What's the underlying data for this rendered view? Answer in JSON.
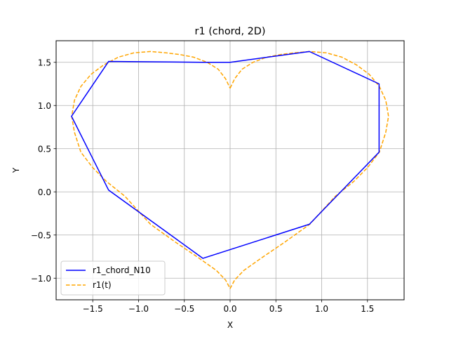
{
  "chart_data": {
    "type": "line",
    "title": "r1 (chord, 2D)",
    "xlabel": "X",
    "ylabel": "Y",
    "xlim": [
      -1.9,
      1.9
    ],
    "ylim": [
      -1.25,
      1.75
    ],
    "xticks": [
      -1.5,
      -1.0,
      -0.5,
      0.0,
      0.5,
      1.0,
      1.5
    ],
    "xtick_labels": [
      "−1.5",
      "−1.0",
      "−0.5",
      "0.0",
      "0.5",
      "1.0",
      "1.5"
    ],
    "yticks": [
      -1.0,
      -0.5,
      0.0,
      0.5,
      1.0,
      1.5
    ],
    "ytick_labels": [
      "−1.0",
      "−0.5",
      "0.0",
      "0.5",
      "1.0",
      "1.5"
    ],
    "grid": true,
    "legend_position": "lower-left",
    "series": [
      {
        "name": "r1_chord_N10",
        "color": "#0000ff",
        "style": "solid",
        "x": [
          0.0,
          0.866,
          1.627,
          1.627,
          0.866,
          -0.297,
          -1.327,
          -1.732,
          -1.327,
          -0.297,
          0.0
        ],
        "y": [
          1.5,
          1.625,
          1.25,
          0.46,
          -0.375,
          -0.77,
          0.02,
          0.875,
          1.51,
          1.5,
          1.5
        ]
      },
      {
        "name": "r1(t)",
        "color": "#ffa500",
        "style": "dashed",
        "x": [
          0.0,
          0.05,
          0.13,
          0.25,
          0.4,
          0.55,
          0.7,
          0.87,
          1.05,
          1.22,
          1.38,
          1.52,
          1.63,
          1.7,
          1.73,
          1.7,
          1.63,
          1.5,
          1.35,
          1.15,
          0.87,
          0.6,
          0.35,
          0.15,
          0.05,
          0.0,
          -0.05,
          -0.15,
          -0.35,
          -0.6,
          -0.87,
          -1.15,
          -1.35,
          -1.5,
          -1.63,
          -1.7,
          -1.73,
          -1.7,
          -1.63,
          -1.52,
          -1.38,
          -1.22,
          -1.05,
          -0.87,
          -0.7,
          -0.55,
          -0.4,
          -0.25,
          -0.13,
          -0.05,
          0.0
        ],
        "y": [
          1.2,
          1.31,
          1.42,
          1.5,
          1.56,
          1.59,
          1.61,
          1.625,
          1.61,
          1.56,
          1.47,
          1.36,
          1.22,
          1.06,
          0.875,
          0.69,
          0.46,
          0.28,
          0.12,
          -0.05,
          -0.375,
          -0.58,
          -0.76,
          -0.91,
          -1.02,
          -1.12,
          -1.02,
          -0.91,
          -0.76,
          -0.58,
          -0.375,
          -0.05,
          0.12,
          0.28,
          0.46,
          0.69,
          0.875,
          1.06,
          1.22,
          1.36,
          1.47,
          1.56,
          1.61,
          1.625,
          1.61,
          1.59,
          1.56,
          1.5,
          1.42,
          1.31,
          1.2
        ]
      }
    ]
  }
}
